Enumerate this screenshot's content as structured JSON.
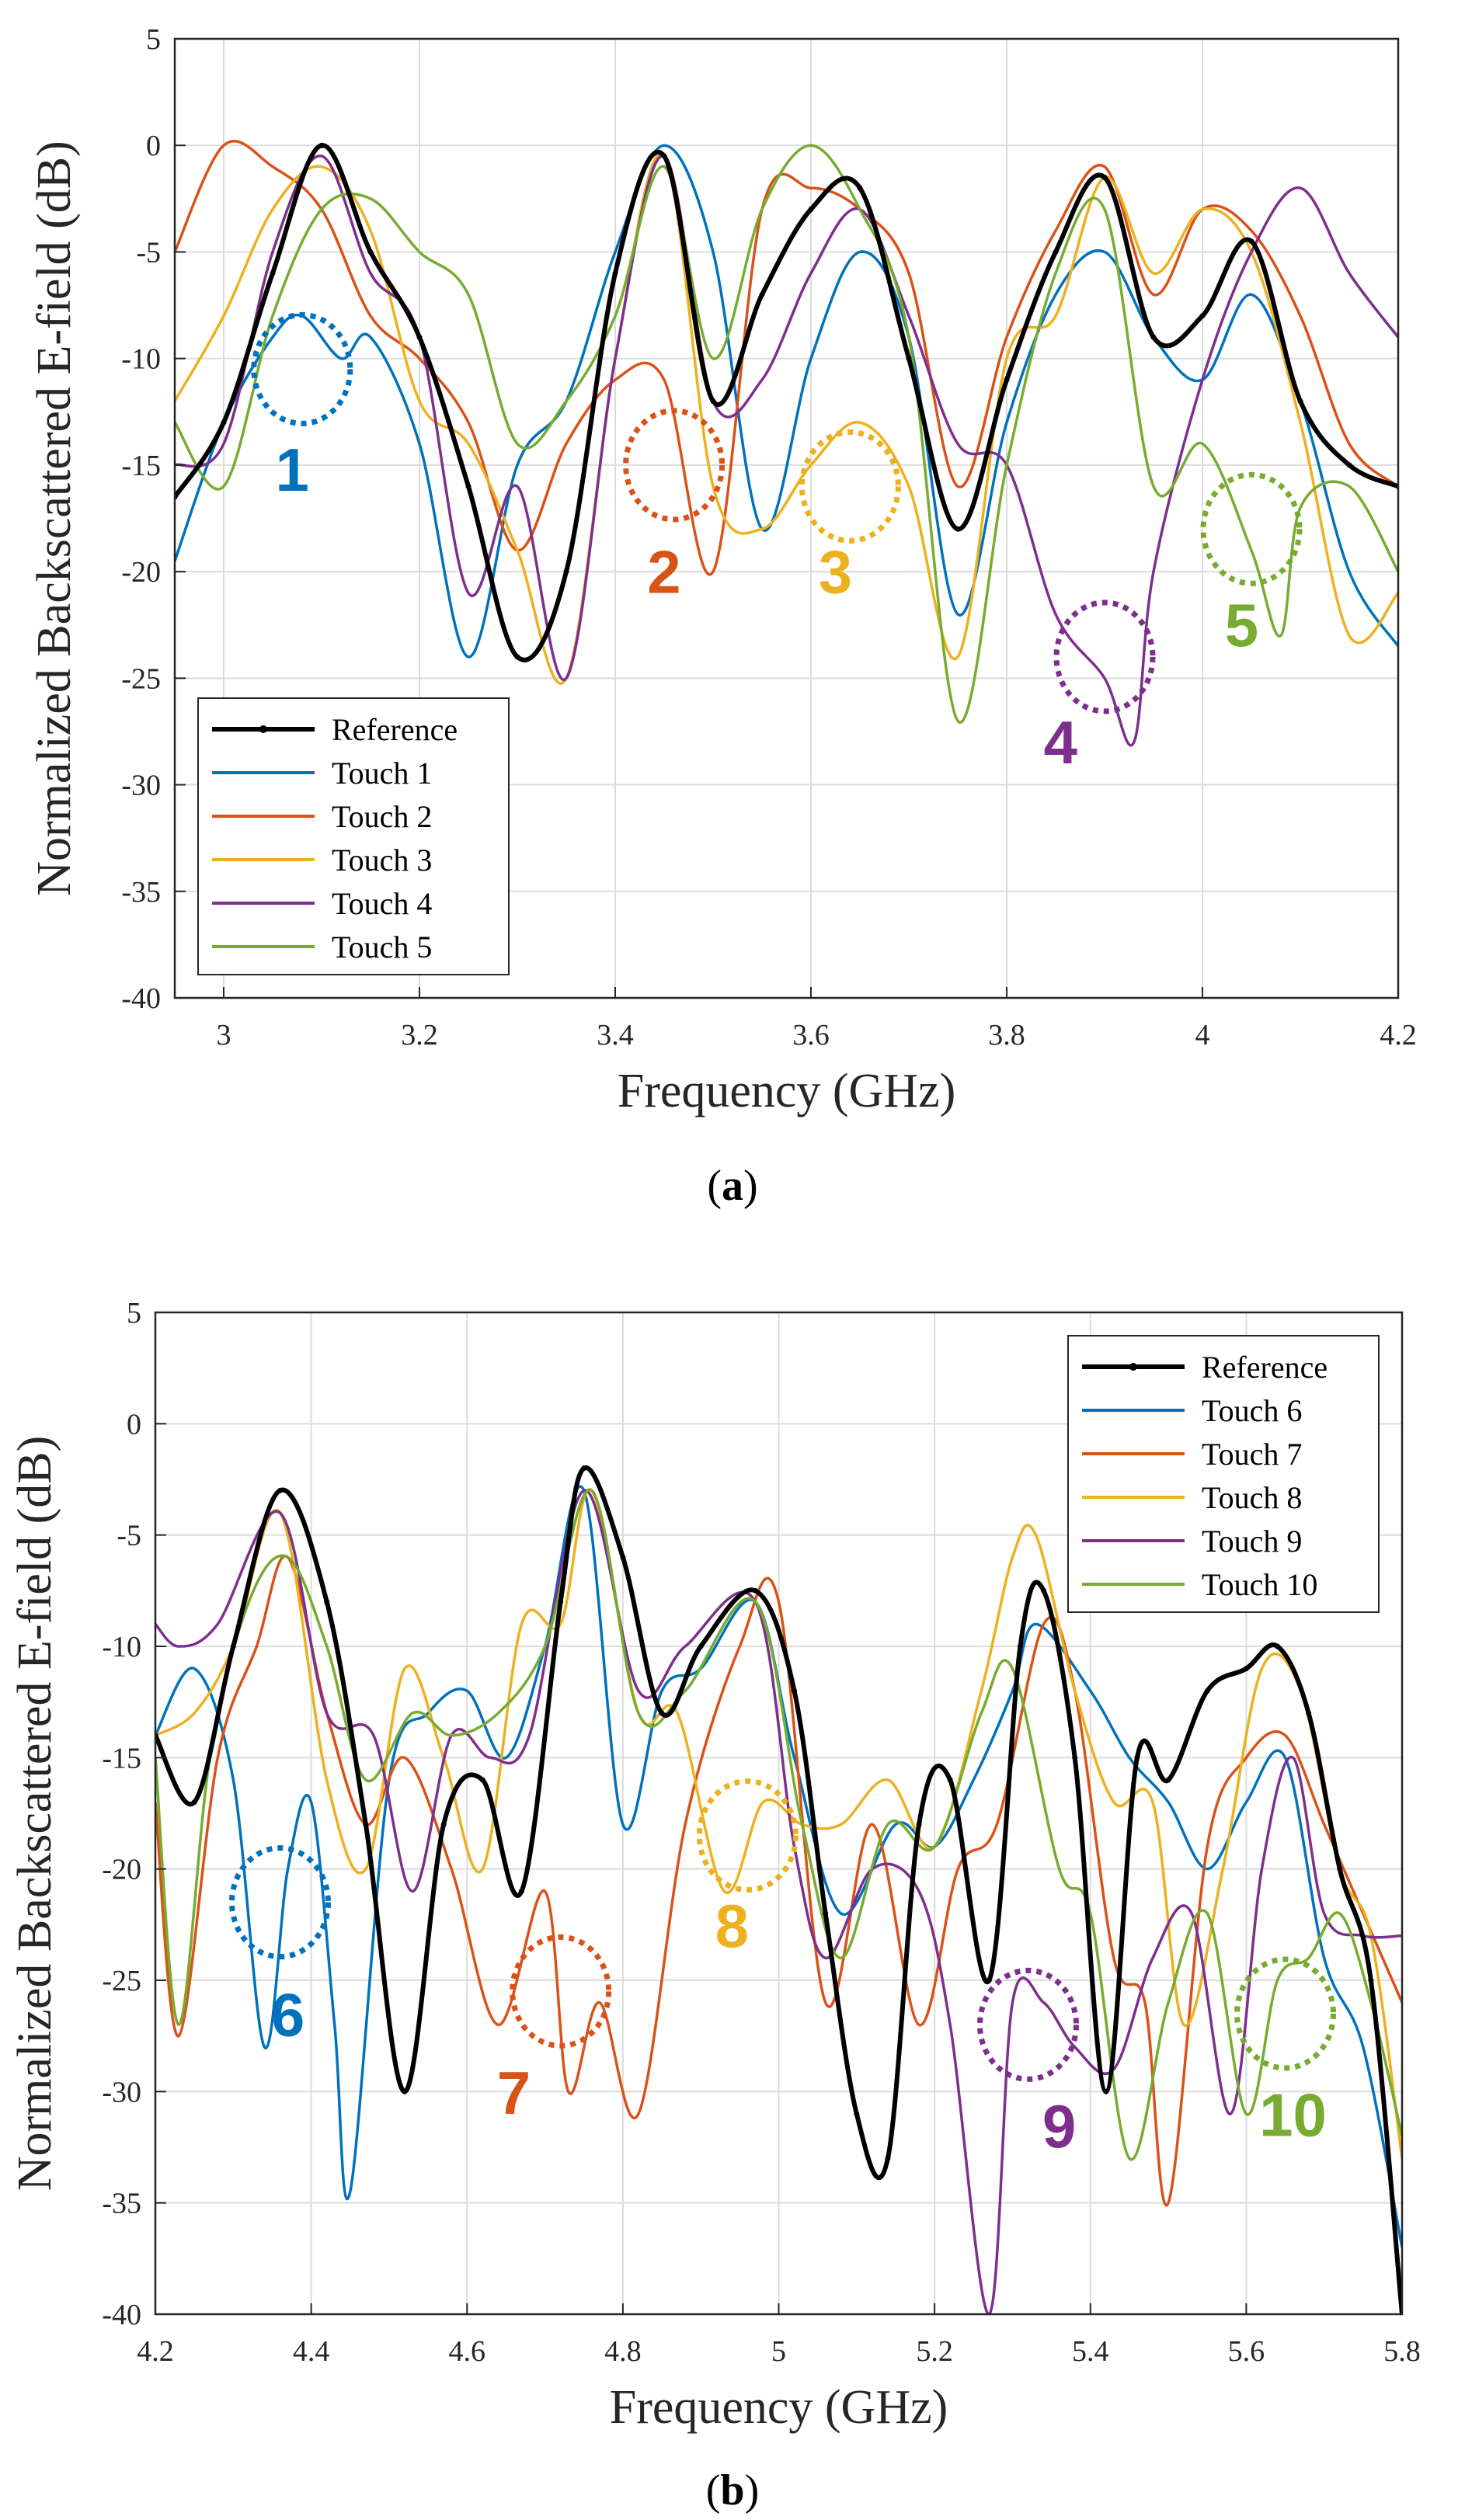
{
  "colors": {
    "reference": "#000000",
    "blue": "#0072BD",
    "orange": "#D95319",
    "yellow": "#EDB120",
    "purple": "#7E2F8E",
    "green": "#77AC30",
    "grid": "#dcdcdc",
    "axis": "#262626"
  },
  "chart_data": [
    {
      "type": "line",
      "caption": "(a)",
      "caption_letter": "a",
      "xlabel": "Frequency (GHz)",
      "ylabel": "Normalized Backscattered E-field (dB)",
      "xlim": [
        2.95,
        4.2
      ],
      "ylim": [
        -40,
        5
      ],
      "xticks": [
        3,
        3.2,
        3.4,
        3.6,
        3.8,
        4,
        4.2
      ],
      "xtick_labels": [
        "3",
        "3.2",
        "3.4",
        "3.6",
        "3.8",
        "4",
        "4.2"
      ],
      "yticks": [
        5,
        0,
        -5,
        -10,
        -15,
        -20,
        -25,
        -30,
        -35,
        -40
      ],
      "ytick_labels": [
        "5",
        "0",
        "-5",
        "-10",
        "-15",
        "-20",
        "-25",
        "-30",
        "-35",
        "-40"
      ],
      "grid": true,
      "legend": "bottom-left",
      "series": [
        {
          "name": "Reference",
          "color": "#000000",
          "marker": true,
          "x": [
            2.95,
            3.0,
            3.05,
            3.1,
            3.15,
            3.2,
            3.25,
            3.3,
            3.35,
            3.4,
            3.45,
            3.5,
            3.55,
            3.6,
            3.65,
            3.7,
            3.75,
            3.8,
            3.85,
            3.9,
            3.95,
            4.0,
            4.05,
            4.1,
            4.15,
            4.2
          ],
          "y": [
            -16.5,
            -13,
            -6,
            0,
            -5,
            -9,
            -16,
            -24,
            -20,
            -6,
            -0.5,
            -12,
            -7,
            -3,
            -2,
            -10,
            -18,
            -11,
            -5,
            -1.5,
            -9,
            -8,
            -4.5,
            -12,
            -15,
            -16
          ]
        },
        {
          "name": "Touch 1",
          "color": "#0072BD",
          "x": [
            2.95,
            3.0,
            3.05,
            3.08,
            3.12,
            3.15,
            3.2,
            3.25,
            3.3,
            3.35,
            3.4,
            3.45,
            3.5,
            3.55,
            3.6,
            3.65,
            3.7,
            3.75,
            3.8,
            3.85,
            3.9,
            3.95,
            4.0,
            4.05,
            4.1,
            4.15,
            4.2
          ],
          "y": [
            -19.5,
            -13,
            -9,
            -8,
            -10,
            -9,
            -14,
            -24,
            -15,
            -12,
            -5,
            0,
            -5,
            -18,
            -10,
            -5,
            -9,
            -22,
            -13,
            -7,
            -5,
            -9,
            -11,
            -7,
            -12,
            -20,
            -23.5
          ]
        },
        {
          "name": "Touch 2",
          "color": "#D95319",
          "x": [
            2.95,
            3.0,
            3.05,
            3.1,
            3.15,
            3.2,
            3.25,
            3.3,
            3.35,
            3.4,
            3.45,
            3.5,
            3.55,
            3.6,
            3.65,
            3.7,
            3.75,
            3.8,
            3.85,
            3.9,
            3.95,
            4.0,
            4.05,
            4.1,
            4.15,
            4.2
          ],
          "y": [
            -5,
            0,
            -1,
            -3,
            -8,
            -10,
            -13,
            -19,
            -14,
            -11,
            -11,
            -20,
            -3,
            -2,
            -3,
            -6,
            -16,
            -9,
            -4,
            -1,
            -7,
            -3,
            -4,
            -8,
            -14,
            -16
          ]
        },
        {
          "name": "Touch 3",
          "color": "#EDB120",
          "x": [
            2.95,
            3.0,
            3.05,
            3.1,
            3.15,
            3.2,
            3.25,
            3.3,
            3.35,
            3.4,
            3.45,
            3.5,
            3.55,
            3.6,
            3.65,
            3.7,
            3.75,
            3.8,
            3.85,
            3.9,
            3.95,
            4.0,
            4.05,
            4.1,
            4.15,
            4.2
          ],
          "y": [
            -12,
            -8,
            -3,
            -1,
            -4,
            -12,
            -14,
            -19,
            -25,
            -10,
            -0.5,
            -16,
            -18,
            -15,
            -13,
            -16,
            -24,
            -10,
            -8,
            -1.5,
            -6,
            -3,
            -5,
            -13,
            -23,
            -21
          ]
        },
        {
          "name": "Touch 4",
          "color": "#7E2F8E",
          "x": [
            2.95,
            3.0,
            3.05,
            3.1,
            3.15,
            3.2,
            3.25,
            3.3,
            3.35,
            3.4,
            3.45,
            3.5,
            3.55,
            3.6,
            3.65,
            3.7,
            3.75,
            3.8,
            3.85,
            3.9,
            3.93,
            3.95,
            4.0,
            4.05,
            4.1,
            4.15,
            4.2
          ],
          "y": [
            -15,
            -14,
            -5,
            -0.5,
            -6,
            -9,
            -21,
            -16,
            -25,
            -10,
            -0.5,
            -12,
            -11,
            -6,
            -3,
            -8,
            -14,
            -15,
            -22,
            -25,
            -28,
            -20,
            -11,
            -5,
            -2,
            -6,
            -9
          ]
        },
        {
          "name": "Touch 5",
          "color": "#77AC30",
          "x": [
            2.95,
            3.0,
            3.05,
            3.1,
            3.15,
            3.2,
            3.25,
            3.3,
            3.35,
            3.4,
            3.45,
            3.5,
            3.55,
            3.6,
            3.65,
            3.7,
            3.75,
            3.8,
            3.85,
            3.9,
            3.95,
            4.0,
            4.05,
            4.08,
            4.1,
            4.15,
            4.2
          ],
          "y": [
            -13,
            -16,
            -8,
            -3,
            -2.5,
            -5,
            -7,
            -14,
            -12,
            -8,
            -1,
            -10,
            -3,
            0,
            -3,
            -9,
            -27,
            -15,
            -6,
            -3,
            -16,
            -14,
            -19,
            -23,
            -17,
            -16,
            -20
          ]
        }
      ],
      "annotations": [
        {
          "label": "1",
          "color": "#0072BD",
          "x": 3.08,
          "y": -10.5,
          "label_x": 3.07,
          "label_y": -16.2
        },
        {
          "label": "2",
          "color": "#D95319",
          "x": 3.46,
          "y": -15,
          "label_x": 3.45,
          "label_y": -21
        },
        {
          "label": "3",
          "color": "#EDB120",
          "x": 3.64,
          "y": -16,
          "label_x": 3.625,
          "label_y": -21
        },
        {
          "label": "4",
          "color": "#7E2F8E",
          "x": 3.9,
          "y": -24,
          "label_x": 3.855,
          "label_y": -29
        },
        {
          "label": "5",
          "color": "#77AC30",
          "x": 4.05,
          "y": -18,
          "label_x": 4.04,
          "label_y": -23.5
        }
      ]
    },
    {
      "type": "line",
      "caption": "(b)",
      "caption_letter": "b",
      "xlabel": "Frequency (GHz)",
      "ylabel": "Normalized Backscattered E-field (dB)",
      "xlim": [
        4.2,
        5.8
      ],
      "ylim": [
        -40,
        5
      ],
      "xticks": [
        4.2,
        4.4,
        4.6,
        4.8,
        5,
        5.2,
        5.4,
        5.6,
        5.8
      ],
      "xtick_labels": [
        "4.2",
        "4.4",
        "4.6",
        "4.8",
        "5",
        "5.2",
        "5.4",
        "5.6",
        "5.8"
      ],
      "yticks": [
        5,
        0,
        -5,
        -10,
        -15,
        -20,
        -25,
        -30,
        -35,
        -40
      ],
      "ytick_labels": [
        "5",
        "0",
        "-5",
        "-10",
        "-15",
        "-20",
        "-25",
        "-30",
        "-35",
        "-40"
      ],
      "grid": true,
      "legend": "top-right",
      "series": [
        {
          "name": "Reference",
          "color": "#000000",
          "marker": true,
          "x": [
            4.2,
            4.25,
            4.3,
            4.36,
            4.42,
            4.47,
            4.52,
            4.57,
            4.62,
            4.67,
            4.72,
            4.75,
            4.8,
            4.85,
            4.9,
            4.97,
            5.02,
            5.06,
            5.1,
            5.14,
            5.18,
            5.22,
            5.27,
            5.31,
            5.34,
            5.38,
            5.42,
            5.46,
            5.5,
            5.55,
            5.6,
            5.64,
            5.68,
            5.72,
            5.76,
            5.8
          ],
          "y": [
            -14,
            -17,
            -10,
            -3,
            -8,
            -18,
            -30,
            -18,
            -16,
            -21,
            -8,
            -2,
            -6,
            -13,
            -10,
            -7.5,
            -12,
            -22,
            -31,
            -33,
            -18,
            -16,
            -25,
            -10,
            -7.5,
            -15,
            -30,
            -15,
            -16,
            -12,
            -11,
            -10,
            -13,
            -20,
            -25,
            -40
          ]
        },
        {
          "name": "Touch 6",
          "color": "#0072BD",
          "x": [
            4.2,
            4.25,
            4.3,
            4.34,
            4.37,
            4.4,
            4.43,
            4.45,
            4.5,
            4.55,
            4.6,
            4.65,
            4.7,
            4.75,
            4.8,
            4.85,
            4.9,
            4.97,
            5.02,
            5.08,
            5.15,
            5.2,
            5.25,
            5.3,
            5.33,
            5.4,
            5.45,
            5.5,
            5.55,
            5.6,
            5.65,
            5.7,
            5.75,
            5.8
          ],
          "y": [
            -14,
            -11,
            -16,
            -28,
            -20,
            -17,
            -27,
            -34.5,
            -16,
            -13,
            -12,
            -15,
            -10,
            -3,
            -18,
            -12,
            -11,
            -8,
            -15,
            -22,
            -18,
            -19,
            -16,
            -12,
            -9,
            -12,
            -15,
            -17,
            -20,
            -17,
            -15,
            -24,
            -28,
            -37
          ]
        },
        {
          "name": "Touch 7",
          "color": "#D95319",
          "x": [
            4.2,
            4.23,
            4.28,
            4.33,
            4.37,
            4.42,
            4.47,
            4.52,
            4.58,
            4.64,
            4.7,
            4.73,
            4.77,
            4.82,
            4.88,
            4.95,
            5.0,
            5.06,
            5.12,
            5.18,
            5.23,
            5.28,
            5.34,
            5.38,
            5.43,
            5.47,
            5.5,
            5.55,
            5.6,
            5.65,
            5.7,
            5.75,
            5.8
          ],
          "y": [
            -17,
            -27.5,
            -15,
            -10,
            -6,
            -13,
            -18,
            -15,
            -20,
            -27,
            -21,
            -30,
            -26,
            -31,
            -18,
            -10,
            -8,
            -26,
            -18,
            -27,
            -20,
            -18,
            -9,
            -12,
            -24,
            -26,
            -35,
            -19,
            -15,
            -14,
            -18,
            -22,
            -26
          ]
        },
        {
          "name": "Touch 8",
          "color": "#EDB120",
          "x": [
            4.2,
            4.25,
            4.3,
            4.36,
            4.42,
            4.47,
            4.52,
            4.57,
            4.62,
            4.67,
            4.72,
            4.76,
            4.82,
            4.87,
            4.93,
            4.98,
            5.03,
            5.08,
            5.14,
            5.2,
            5.26,
            5.3,
            5.33,
            5.38,
            5.43,
            5.48,
            5.52,
            5.57,
            5.62,
            5.67,
            5.72,
            5.76,
            5.8
          ],
          "y": [
            -14,
            -13,
            -10,
            -4,
            -16,
            -20,
            -11,
            -15,
            -20,
            -9,
            -9,
            -3,
            -13,
            -13,
            -21,
            -17,
            -18,
            -18,
            -16,
            -19,
            -12,
            -6,
            -5,
            -12,
            -17,
            -17,
            -27,
            -20,
            -11,
            -12,
            -20,
            -23,
            -33
          ]
        },
        {
          "name": "Touch 9",
          "color": "#7E2F8E",
          "x": [
            4.2,
            4.23,
            4.28,
            4.36,
            4.42,
            4.48,
            4.53,
            4.58,
            4.63,
            4.68,
            4.75,
            4.82,
            4.88,
            4.97,
            5.02,
            5.06,
            5.12,
            5.18,
            5.22,
            5.27,
            5.3,
            5.34,
            5.38,
            5.43,
            5.48,
            5.53,
            5.58,
            5.62,
            5.66,
            5.7,
            5.75,
            5.8
          ],
          "y": [
            -9,
            -10,
            -9,
            -4,
            -13,
            -14,
            -21,
            -14,
            -15,
            -14,
            -3,
            -12,
            -10,
            -8,
            -19,
            -24,
            -20,
            -21,
            -27,
            -40,
            -26,
            -26,
            -28,
            -29,
            -24,
            -22,
            -31,
            -20,
            -15,
            -22,
            -23,
            -23
          ]
        },
        {
          "name": "Touch 10",
          "color": "#77AC30",
          "x": [
            4.2,
            4.23,
            4.27,
            4.32,
            4.37,
            4.42,
            4.47,
            4.53,
            4.58,
            4.64,
            4.7,
            4.76,
            4.82,
            4.88,
            4.97,
            5.03,
            5.08,
            5.14,
            5.2,
            5.26,
            5.3,
            5.36,
            5.4,
            5.45,
            5.5,
            5.55,
            5.6,
            5.64,
            5.68,
            5.72,
            5.76,
            5.8
          ],
          "y": [
            -15,
            -27,
            -15,
            -8,
            -6,
            -10,
            -16,
            -13,
            -14,
            -13,
            -10,
            -3,
            -13,
            -12,
            -8,
            -18,
            -24,
            -18,
            -19,
            -13,
            -11,
            -20,
            -22,
            -33,
            -26,
            -22,
            -31,
            -25,
            -24,
            -22,
            -26,
            -32
          ]
        }
      ],
      "annotations": [
        {
          "label": "6",
          "color": "#0072BD",
          "x": 4.36,
          "y": -21.5,
          "label_x": 4.37,
          "label_y": -27.5
        },
        {
          "label": "7",
          "color": "#D95319",
          "x": 4.72,
          "y": -25.5,
          "label_x": 4.66,
          "label_y": -31
        },
        {
          "label": "8",
          "color": "#EDB120",
          "x": 4.96,
          "y": -18.5,
          "label_x": 4.94,
          "label_y": -23.5
        },
        {
          "label": "9",
          "color": "#7E2F8E",
          "x": 5.32,
          "y": -27,
          "label_x": 5.36,
          "label_y": -32.5
        },
        {
          "label": "10",
          "color": "#77AC30",
          "x": 5.65,
          "y": -26.5,
          "label_x": 5.66,
          "label_y": -32
        }
      ]
    }
  ]
}
